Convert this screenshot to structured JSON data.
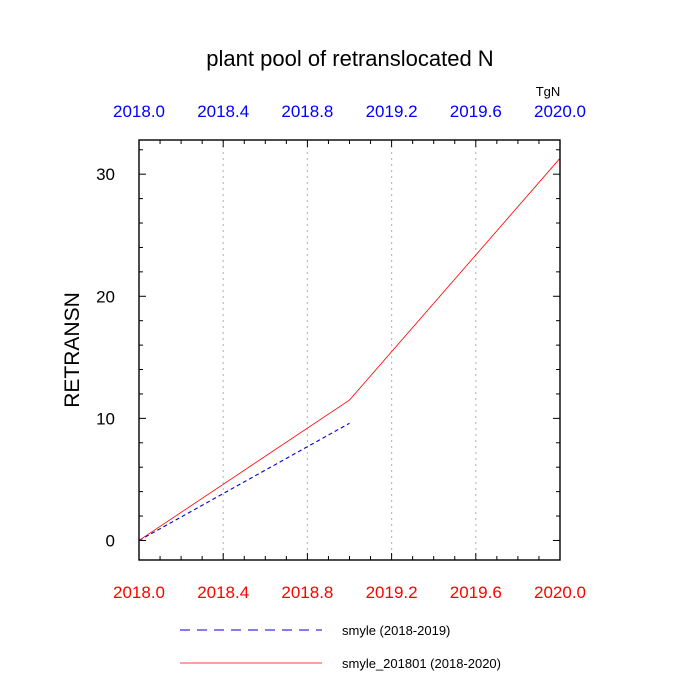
{
  "chart_data": {
    "type": "line",
    "title": "plant pool of retranslocated N",
    "ylabel": "RETRANSN",
    "units": "TgN",
    "xlim": [
      2018.0,
      2020.0
    ],
    "ylim": [
      -1.6,
      32.8
    ],
    "x_ticks": [
      "2018.0",
      "2018.4",
      "2018.8",
      "2019.2",
      "2019.6",
      "2020.0"
    ],
    "x_tick_values": [
      2018.0,
      2018.4,
      2018.8,
      2019.2,
      2019.6,
      2020.0
    ],
    "y_ticks": [
      "0",
      "10",
      "20",
      "30"
    ],
    "y_tick_values": [
      0,
      10,
      20,
      30
    ],
    "grid": "vertical dotted",
    "legend": "bottom",
    "colors": {
      "top_axis_labels": "#0000ff",
      "bottom_axis_labels": "#ff0000"
    },
    "series": [
      {
        "name": "smyle (2018-2019)",
        "color": "#0000cc",
        "dash": "dashed",
        "x": [
          2018.0,
          2019.0
        ],
        "y": [
          0.0,
          9.6
        ]
      },
      {
        "name": "smyle_201801 (2018-2020)",
        "color": "#ff0000",
        "dash": "solid",
        "x": [
          2018.0,
          2019.0,
          2020.0
        ],
        "y": [
          0.0,
          11.5,
          31.3
        ]
      }
    ]
  }
}
